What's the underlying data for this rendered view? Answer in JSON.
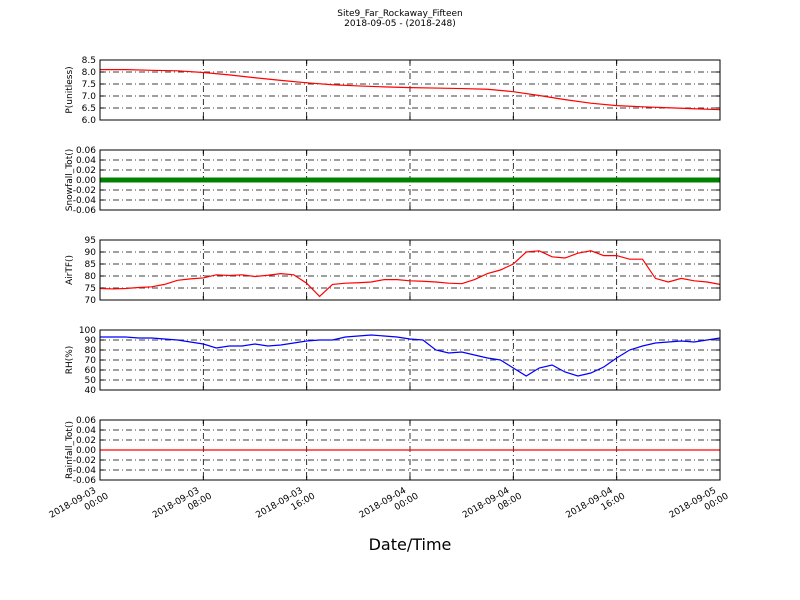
{
  "title": "Site9_Far_Rockaway_Fifteen",
  "subtitle": "2018-09-05 - (2018-248)",
  "xlabel": "Date/Time",
  "chart_data": [
    {
      "type": "line",
      "ylabel": "P(unitless)",
      "x": [
        "2018-09-03 00:00",
        "2018-09-03 02:00",
        "2018-09-03 04:00",
        "2018-09-03 06:00",
        "2018-09-03 08:00",
        "2018-09-03 10:00",
        "2018-09-03 12:00",
        "2018-09-03 14:00",
        "2018-09-03 16:00",
        "2018-09-03 18:00",
        "2018-09-03 20:00",
        "2018-09-03 22:00",
        "2018-09-04 00:00",
        "2018-09-04 02:00",
        "2018-09-04 04:00",
        "2018-09-04 06:00",
        "2018-09-04 08:00",
        "2018-09-04 10:00",
        "2018-09-04 12:00",
        "2018-09-04 14:00",
        "2018-09-04 16:00",
        "2018-09-04 18:00",
        "2018-09-04 20:00",
        "2018-09-04 22:00",
        "2018-09-05 00:00"
      ],
      "series": [
        {
          "color": "#ff0000",
          "values": [
            8.1,
            8.1,
            8.07,
            8.05,
            7.98,
            7.88,
            7.76,
            7.65,
            7.55,
            7.47,
            7.42,
            7.38,
            7.35,
            7.33,
            7.31,
            7.28,
            7.18,
            7.02,
            6.85,
            6.7,
            6.6,
            6.55,
            6.51,
            6.47,
            6.43
          ]
        }
      ],
      "xlim": [
        "2018-09-03 00:00",
        "2018-09-05 00:00"
      ],
      "xticks": [
        "2018-09-03 00:00",
        "2018-09-03 08:00",
        "2018-09-03 16:00",
        "2018-09-04 00:00",
        "2018-09-04 08:00",
        "2018-09-04 16:00",
        "2018-09-05 00:00"
      ],
      "ylim": [
        6.0,
        8.5
      ],
      "yticks": [
        {
          "value": 6,
          "label": "6.0"
        },
        6.5,
        {
          "value": 7,
          "label": "7.0"
        },
        7.5,
        {
          "value": 8,
          "label": "8.0"
        },
        8.5
      ],
      "grid": true
    },
    {
      "type": "line",
      "ylabel": "Snowfall_Tot()",
      "x": [
        "2018-09-03 00:00",
        "2018-09-03 04:00",
        "2018-09-03 08:00",
        "2018-09-03 12:00",
        "2018-09-03 16:00",
        "2018-09-03 20:00",
        "2018-09-04 00:00",
        "2018-09-04 04:00",
        "2018-09-04 08:00",
        "2018-09-04 12:00",
        "2018-09-04 16:00",
        "2018-09-04 20:00",
        "2018-09-05 00:00"
      ],
      "series": [
        {
          "color": "#008000",
          "values": [
            0,
            0,
            0,
            0,
            0,
            0,
            0,
            0,
            0,
            0,
            0,
            0,
            0
          ]
        }
      ],
      "xlim": [
        "2018-09-03 00:00",
        "2018-09-05 00:00"
      ],
      "xticks": [
        "2018-09-03 00:00",
        "2018-09-03 08:00",
        "2018-09-03 16:00",
        "2018-09-04 00:00",
        "2018-09-04 08:00",
        "2018-09-04 16:00",
        "2018-09-05 00:00"
      ],
      "ylim": [
        -0.06,
        0.06
      ],
      "yticks": [
        -0.06,
        -0.04,
        -0.02,
        {
          "value": 0,
          "label": "0.00"
        },
        0.02,
        0.04,
        0.06
      ],
      "grid": true
    },
    {
      "type": "line",
      "ylabel": "AirTF()",
      "x": [
        "2018-09-03 00:00",
        "2018-09-03 01:00",
        "2018-09-03 02:00",
        "2018-09-03 03:00",
        "2018-09-03 04:00",
        "2018-09-03 05:00",
        "2018-09-03 06:00",
        "2018-09-03 07:00",
        "2018-09-03 08:00",
        "2018-09-03 09:00",
        "2018-09-03 10:00",
        "2018-09-03 11:00",
        "2018-09-03 12:00",
        "2018-09-03 13:00",
        "2018-09-03 14:00",
        "2018-09-03 15:00",
        "2018-09-03 16:00",
        "2018-09-03 17:00",
        "2018-09-03 18:00",
        "2018-09-03 19:00",
        "2018-09-03 20:00",
        "2018-09-03 21:00",
        "2018-09-03 22:00",
        "2018-09-03 23:00",
        "2018-09-04 00:00",
        "2018-09-04 01:00",
        "2018-09-04 02:00",
        "2018-09-04 03:00",
        "2018-09-04 04:00",
        "2018-09-04 05:00",
        "2018-09-04 06:00",
        "2018-09-04 07:00",
        "2018-09-04 08:00",
        "2018-09-04 09:00",
        "2018-09-04 10:00",
        "2018-09-04 11:00",
        "2018-09-04 12:00",
        "2018-09-04 13:00",
        "2018-09-04 14:00",
        "2018-09-04 15:00",
        "2018-09-04 16:00",
        "2018-09-04 17:00",
        "2018-09-04 18:00",
        "2018-09-04 19:00",
        "2018-09-04 20:00",
        "2018-09-04 21:00",
        "2018-09-04 22:00",
        "2018-09-04 23:00",
        "2018-09-05 00:00"
      ],
      "series": [
        {
          "color": "#ff0000",
          "values": [
            74.8,
            74.6,
            74.8,
            75.2,
            75.5,
            76.5,
            78.2,
            78.8,
            79.2,
            80.5,
            80.2,
            80.5,
            79.8,
            80.3,
            81,
            80.5,
            77,
            71.5,
            76.5,
            77,
            77.2,
            77.5,
            78.5,
            78.5,
            78,
            77.8,
            77.5,
            77,
            76.8,
            78.5,
            81,
            82.5,
            85,
            90,
            90.5,
            88,
            87.5,
            89.5,
            90.5,
            88.5,
            88.5,
            87,
            87,
            79,
            77.5,
            79,
            78,
            77.5,
            76.5
          ]
        }
      ],
      "xlim": [
        "2018-09-03 00:00",
        "2018-09-05 00:00"
      ],
      "xticks": [
        "2018-09-03 00:00",
        "2018-09-03 08:00",
        "2018-09-03 16:00",
        "2018-09-04 00:00",
        "2018-09-04 08:00",
        "2018-09-04 16:00",
        "2018-09-05 00:00"
      ],
      "ylim": [
        70,
        95
      ],
      "yticks": [
        70,
        75,
        80,
        85,
        90,
        95
      ],
      "grid": true
    },
    {
      "type": "line",
      "ylabel": "RH(%)",
      "x": [
        "2018-09-03 00:00",
        "2018-09-03 01:00",
        "2018-09-03 02:00",
        "2018-09-03 03:00",
        "2018-09-03 04:00",
        "2018-09-03 05:00",
        "2018-09-03 06:00",
        "2018-09-03 07:00",
        "2018-09-03 08:00",
        "2018-09-03 09:00",
        "2018-09-03 10:00",
        "2018-09-03 11:00",
        "2018-09-03 12:00",
        "2018-09-03 13:00",
        "2018-09-03 14:00",
        "2018-09-03 15:00",
        "2018-09-03 16:00",
        "2018-09-03 17:00",
        "2018-09-03 18:00",
        "2018-09-03 19:00",
        "2018-09-03 20:00",
        "2018-09-03 21:00",
        "2018-09-03 22:00",
        "2018-09-03 23:00",
        "2018-09-04 00:00",
        "2018-09-04 01:00",
        "2018-09-04 02:00",
        "2018-09-04 03:00",
        "2018-09-04 04:00",
        "2018-09-04 05:00",
        "2018-09-04 06:00",
        "2018-09-04 07:00",
        "2018-09-04 08:00",
        "2018-09-04 09:00",
        "2018-09-04 10:00",
        "2018-09-04 11:00",
        "2018-09-04 12:00",
        "2018-09-04 13:00",
        "2018-09-04 14:00",
        "2018-09-04 15:00",
        "2018-09-04 16:00",
        "2018-09-04 17:00",
        "2018-09-04 18:00",
        "2018-09-04 19:00",
        "2018-09-04 20:00",
        "2018-09-04 21:00",
        "2018-09-04 22:00",
        "2018-09-04 23:00",
        "2018-09-05 00:00"
      ],
      "series": [
        {
          "color": "#0000ff",
          "values": [
            93,
            93,
            93,
            92,
            92,
            91,
            90,
            88,
            86,
            82,
            84,
            84,
            86,
            84,
            85,
            87,
            89,
            90,
            90,
            93,
            94,
            95,
            94,
            93,
            91,
            90,
            80,
            77,
            78,
            75,
            72,
            70,
            62,
            54,
            62,
            65,
            58,
            54,
            57,
            63,
            72,
            80,
            84,
            87,
            88,
            89,
            88,
            90,
            92
          ]
        }
      ],
      "xlim": [
        "2018-09-03 00:00",
        "2018-09-05 00:00"
      ],
      "xticks": [
        "2018-09-03 00:00",
        "2018-09-03 08:00",
        "2018-09-03 16:00",
        "2018-09-04 00:00",
        "2018-09-04 08:00",
        "2018-09-04 16:00",
        "2018-09-05 00:00"
      ],
      "ylim": [
        40,
        100
      ],
      "yticks": [
        40,
        50,
        60,
        70,
        80,
        90,
        100
      ],
      "grid": true
    },
    {
      "type": "line",
      "ylabel": "Rainfall_Tot()",
      "x": [
        "2018-09-03 00:00",
        "2018-09-03 04:00",
        "2018-09-03 08:00",
        "2018-09-03 12:00",
        "2018-09-03 16:00",
        "2018-09-03 20:00",
        "2018-09-04 00:00",
        "2018-09-04 04:00",
        "2018-09-04 08:00",
        "2018-09-04 12:00",
        "2018-09-04 16:00",
        "2018-09-04 20:00",
        "2018-09-05 00:00"
      ],
      "series": [
        {
          "color": "#ff0000",
          "values": [
            0,
            0,
            0,
            0,
            0,
            0,
            0,
            0,
            0,
            0,
            0,
            0,
            0
          ]
        }
      ],
      "xlim": [
        "2018-09-03 00:00",
        "2018-09-05 00:00"
      ],
      "xticks": [
        "2018-09-03 00:00",
        "2018-09-03 08:00",
        "2018-09-03 16:00",
        "2018-09-04 00:00",
        "2018-09-04 08:00",
        "2018-09-04 16:00",
        "2018-09-05 00:00"
      ],
      "ylim": [
        -0.06,
        0.06
      ],
      "yticks": [
        -0.06,
        -0.04,
        -0.02,
        {
          "value": 0,
          "label": "0.00"
        },
        0.02,
        0.04,
        0.06
      ],
      "grid": true
    }
  ]
}
